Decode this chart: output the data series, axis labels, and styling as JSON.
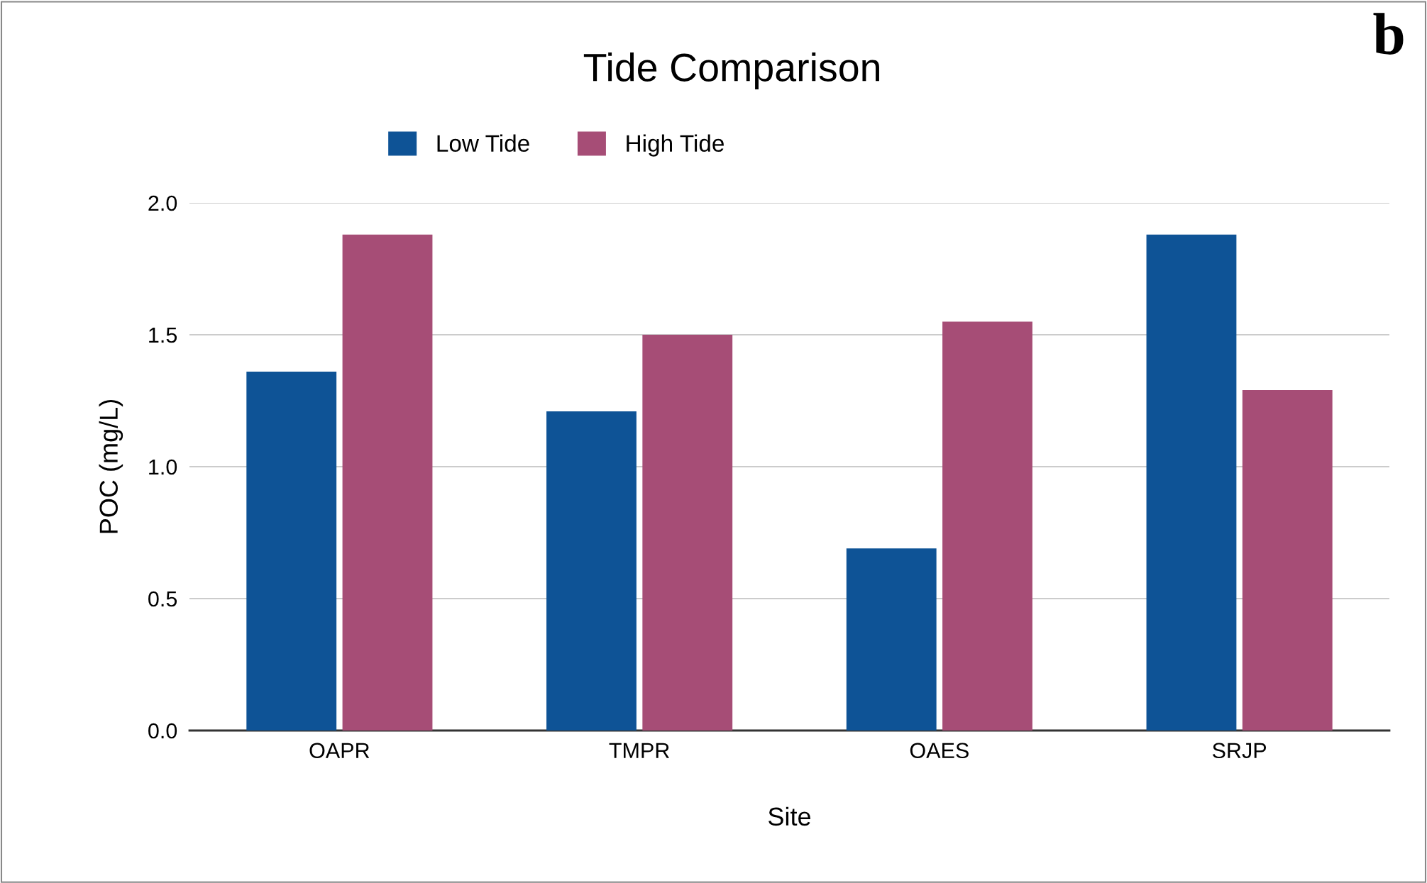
{
  "chart_data": {
    "type": "bar",
    "title": "Tide Comparison",
    "xlabel": "Site",
    "ylabel": "POC (mg/L)",
    "categories": [
      "OAPR",
      "TMPR",
      "OAES",
      "SRJP"
    ],
    "series": [
      {
        "name": "Low Tide",
        "color": "#0e5396",
        "values": [
          1.36,
          1.21,
          0.69,
          1.88
        ]
      },
      {
        "name": "High Tide",
        "color": "#a64d76",
        "values": [
          1.88,
          1.5,
          1.55,
          1.29
        ]
      }
    ],
    "ylim": [
      0,
      2.0
    ],
    "yticks": [
      {
        "value": 0,
        "label": "0.0"
      },
      {
        "value": 0.5,
        "label": "0.5"
      },
      {
        "value": 1.0,
        "label": "1.0"
      },
      {
        "value": 1.5,
        "label": "1.5"
      },
      {
        "value": 2.0,
        "label": "2.0"
      }
    ],
    "grid": "y",
    "legend": "top",
    "annotations": [
      "b"
    ]
  }
}
